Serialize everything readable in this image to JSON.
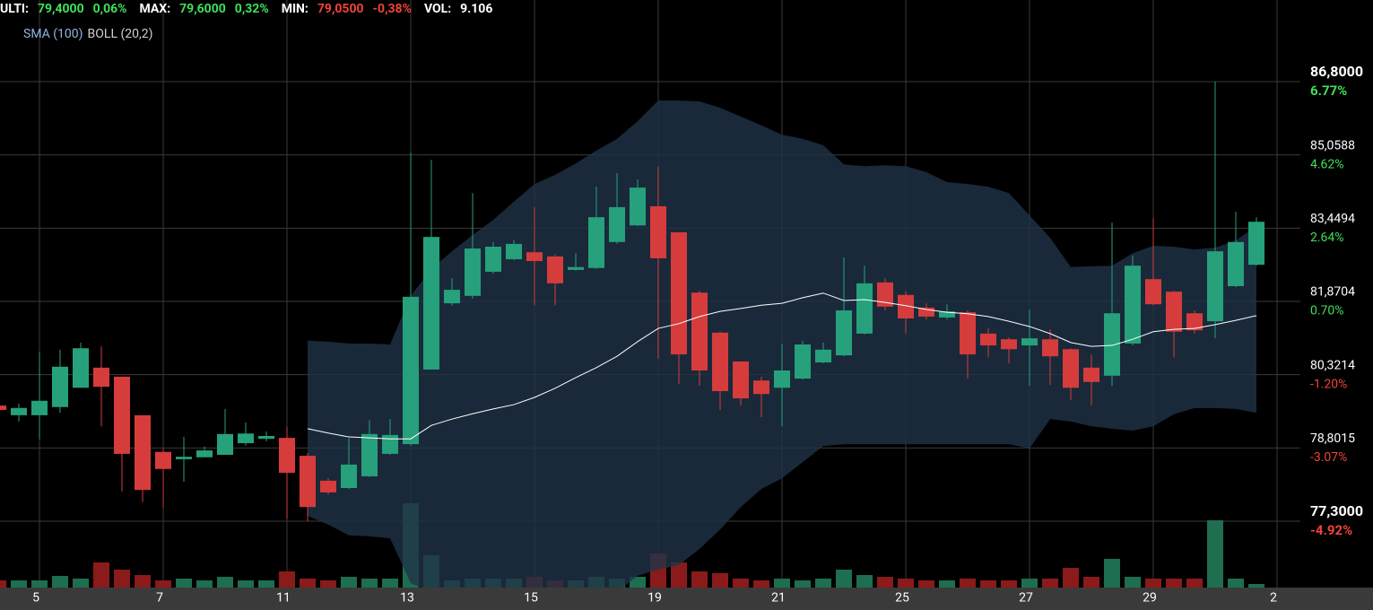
{
  "header": {
    "items": [
      {
        "label": "ULTI:",
        "value": "79,4000",
        "change": "0,06%",
        "color": "#3ee05a"
      },
      {
        "label": "MAX:",
        "value": "79,6000",
        "change": "0,32%",
        "color": "#3ee05a"
      },
      {
        "label": "MIN:",
        "value": "79,0500",
        "change": "-0,38%",
        "color": "#f0433a"
      },
      {
        "label": "VOL:",
        "value": "9.106",
        "color": "#ffffff"
      }
    ]
  },
  "chart_data": {
    "type": "candlestick",
    "indicators": [
      {
        "name": "SMA (100)",
        "color": "#8fb4e0"
      },
      {
        "name": "BOLL (20,2)",
        "color": "#d0d0d0"
      }
    ],
    "x_labels": [
      "5",
      "7",
      "11",
      "13",
      "15",
      "19",
      "21",
      "25",
      "27",
      "29",
      "2"
    ],
    "open": [
      79.68,
      79.48,
      79.48,
      79.65,
      80.05,
      80.47,
      80.28,
      79.48,
      78.72,
      78.57,
      78.61,
      78.66,
      78.9,
      78.99,
      79.01,
      78.64,
      78.13,
      77.98,
      78.22,
      78.68,
      78.88,
      80.43,
      81.83,
      81.99,
      82.51,
      82.78,
      82.93,
      82.84,
      82.55,
      82.59,
      83.15,
      83.51,
      83.93,
      83.36,
      82.06,
      81.21,
      80.6,
      80.2,
      80.05,
      80.24,
      80.58,
      80.73,
      81.19,
      82.28,
      82.01,
      81.74,
      81.53,
      81.64,
      81.19,
      81.07,
      80.94,
      81.07,
      80.86,
      80.47,
      80.3,
      80.98,
      82.35,
      82.08,
      81.62,
      81.45,
      82.2,
      82.66
    ],
    "high": [
      79.72,
      79.72,
      80.81,
      80.85,
      81.0,
      80.92,
      80.28,
      79.48,
      78.79,
      79.03,
      78.83,
      79.61,
      79.33,
      79.14,
      79.24,
      78.7,
      78.18,
      79.01,
      79.38,
      79.4,
      85.12,
      84.95,
      82.37,
      84.22,
      83.15,
      83.19,
      83.91,
      82.89,
      82.91,
      84.36,
      84.66,
      84.52,
      84.8,
      83.36,
      82.1,
      81.23,
      80.6,
      80.28,
      80.98,
      81.04,
      81.0,
      82.82,
      82.64,
      82.37,
      82.08,
      81.83,
      81.81,
      81.68,
      81.3,
      81.11,
      81.7,
      81.28,
      80.88,
      80.75,
      83.57,
      82.86,
      83.67,
      82.1,
      81.68,
      86.8,
      83.81,
      83.69
    ],
    "low": [
      79.53,
      79.35,
      78.98,
      79.53,
      80.05,
      79.25,
      77.91,
      77.69,
      77.58,
      78.11,
      78.61,
      78.66,
      78.85,
      78.94,
      77.35,
      77.3,
      77.85,
      77.96,
      78.2,
      78.66,
      78.85,
      80.43,
      81.78,
      81.93,
      82.47,
      82.76,
      81.79,
      81.79,
      82.53,
      82.57,
      83.11,
      83.49,
      80.66,
      80.13,
      80.09,
      79.59,
      79.68,
      79.44,
      79.25,
      80.22,
      80.56,
      80.71,
      81.17,
      81.68,
      81.19,
      81.49,
      81.49,
      80.24,
      80.69,
      80.56,
      80.09,
      80.11,
      79.79,
      79.68,
      80.09,
      80.94,
      81.79,
      80.69,
      81.19,
      81.09,
      82.18,
      82.64
    ],
    "close": [
      79.59,
      79.63,
      79.78,
      80.49,
      80.88,
      80.07,
      78.68,
      77.94,
      78.37,
      78.62,
      78.75,
      79.09,
      79.1,
      79.05,
      78.29,
      77.59,
      77.89,
      78.46,
      79.09,
      79.07,
      81.97,
      83.26,
      82.12,
      83.01,
      83.05,
      83.11,
      82.74,
      82.26,
      82.61,
      83.69,
      83.91,
      84.34,
      82.8,
      80.75,
      80.41,
      79.98,
      79.83,
      79.92,
      80.41,
      80.96,
      80.85,
      81.68,
      82.26,
      81.76,
      81.51,
      81.55,
      81.66,
      80.75,
      80.94,
      80.86,
      81.09,
      80.71,
      80.05,
      80.17,
      81.62,
      82.64,
      81.81,
      81.23,
      81.26,
      82.95,
      83.15,
      83.59
    ],
    "volume": [
      8,
      8,
      8,
      13,
      10,
      28,
      20,
      14,
      8,
      10,
      8,
      12,
      8,
      8,
      18,
      10,
      8,
      12,
      10,
      10,
      94,
      36,
      8,
      10,
      10,
      10,
      12,
      8,
      8,
      12,
      10,
      12,
      38,
      28,
      18,
      16,
      10,
      8,
      10,
      8,
      10,
      20,
      14,
      12,
      10,
      8,
      8,
      10,
      8,
      8,
      10,
      10,
      22,
      12,
      32,
      12,
      10,
      10,
      10,
      75,
      10,
      4
    ],
    "bollinger": {
      "upper": [
        null,
        null,
        null,
        null,
        null,
        null,
        null,
        null,
        null,
        null,
        null,
        null,
        null,
        null,
        null,
        81.04,
        81.02,
        80.98,
        80.98,
        80.96,
        81.99,
        82.57,
        82.95,
        83.3,
        83.63,
        84.03,
        84.42,
        84.62,
        84.87,
        85.16,
        85.44,
        85.86,
        86.35,
        86.35,
        86.33,
        86.18,
        85.97,
        85.76,
        85.54,
        85.44,
        85.29,
        84.85,
        84.81,
        84.83,
        84.81,
        84.68,
        84.46,
        84.42,
        84.36,
        84.22,
        83.73,
        83.24,
        82.61,
        82.63,
        82.64,
        82.91,
        83.07,
        83.05,
        82.99,
        83.03,
        83.18,
        83.5
      ],
      "middle": [
        null,
        null,
        null,
        null,
        null,
        null,
        null,
        null,
        null,
        null,
        null,
        null,
        null,
        null,
        null,
        79.2,
        79.11,
        79.03,
        79.01,
        78.99,
        78.99,
        79.27,
        79.4,
        79.51,
        79.61,
        79.7,
        79.85,
        80.04,
        80.26,
        80.47,
        80.71,
        81.02,
        81.3,
        81.4,
        81.55,
        81.66,
        81.72,
        81.79,
        81.83,
        81.95,
        82.05,
        81.89,
        81.91,
        81.85,
        81.78,
        81.7,
        81.64,
        81.61,
        81.55,
        81.45,
        81.34,
        81.19,
        81.0,
        80.92,
        80.94,
        81.07,
        81.23,
        81.28,
        81.3,
        81.38,
        81.47,
        81.57
      ],
      "lower": [
        null,
        null,
        null,
        null,
        null,
        null,
        null,
        null,
        null,
        null,
        null,
        null,
        null,
        null,
        null,
        77.41,
        77.23,
        77.01,
        76.99,
        76.95,
        76.03,
        75.85,
        75.66,
        75.48,
        75.48,
        75.48,
        75.48,
        75.48,
        75.48,
        75.66,
        75.85,
        76.18,
        76.31,
        76.4,
        76.73,
        77.13,
        77.59,
        77.96,
        78.18,
        78.51,
        78.84,
        78.88,
        78.88,
        78.88,
        78.88,
        78.88,
        78.88,
        78.88,
        78.88,
        78.88,
        78.79,
        79.4,
        79.35,
        79.25,
        79.2,
        79.16,
        79.25,
        79.5,
        79.63,
        79.63,
        79.61,
        79.53
      ]
    },
    "up_color": "#26a17b",
    "down_color": "#d63c3c",
    "up_volume_color": "#1e6e50",
    "down_volume_color": "#8b1a1a",
    "band_color": "#1f3347",
    "middle_color": "#ffffff",
    "yticks": [
      {
        "value": 86.8,
        "label": "86,8000"
      },
      {
        "value": 85.0588,
        "label": "85,0588"
      },
      {
        "value": 83.4494,
        "label": "83,4494"
      },
      {
        "value": 81.8704,
        "label": "81,8704"
      },
      {
        "value": 80.3214,
        "label": "80,3214"
      },
      {
        "value": 78.8015,
        "label": "78,8015"
      },
      {
        "value": 77.3,
        "label": "77,3000"
      }
    ],
    "ytick_changes": [
      "6.77%",
      "4.62%",
      "2.64%",
      "0.70%",
      "-1.20%",
      "-3.07%",
      "-4.92%"
    ],
    "grid": true
  }
}
